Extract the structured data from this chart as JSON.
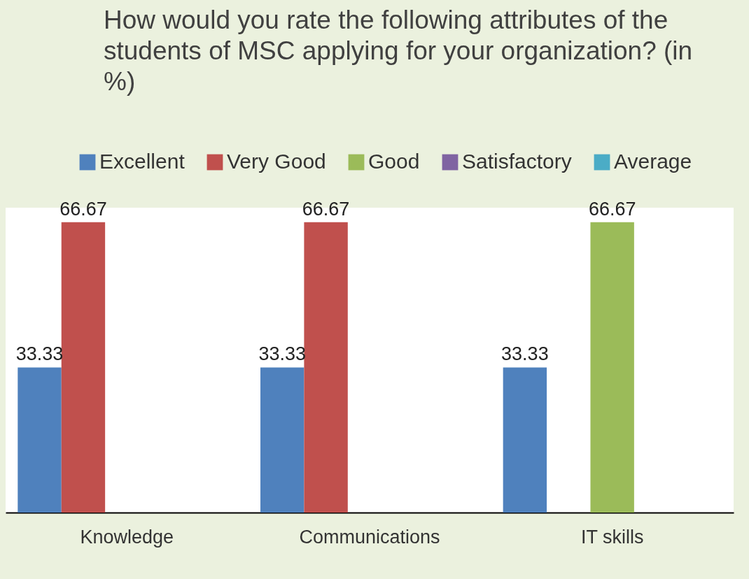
{
  "chart_data": {
    "type": "bar",
    "title": "How would you rate the following attributes of the students of MSC applying for your organization?   (in %)",
    "categories": [
      "Knowledge",
      "Communications",
      "IT skills"
    ],
    "series": [
      {
        "name": "Excellent",
        "color": "#4f81bd",
        "values": [
          33.33,
          33.33,
          33.33
        ]
      },
      {
        "name": "Very Good",
        "color": "#c0504d",
        "values": [
          66.67,
          66.67,
          null
        ]
      },
      {
        "name": "Good",
        "color": "#9bbb59",
        "values": [
          null,
          null,
          66.67
        ]
      },
      {
        "name": "Satisfactory",
        "color": "#8064a2",
        "values": [
          null,
          null,
          null
        ]
      },
      {
        "name": "Average",
        "color": "#4bacc6",
        "values": [
          null,
          null,
          null
        ]
      }
    ],
    "data_labels": true,
    "legend": "top"
  }
}
